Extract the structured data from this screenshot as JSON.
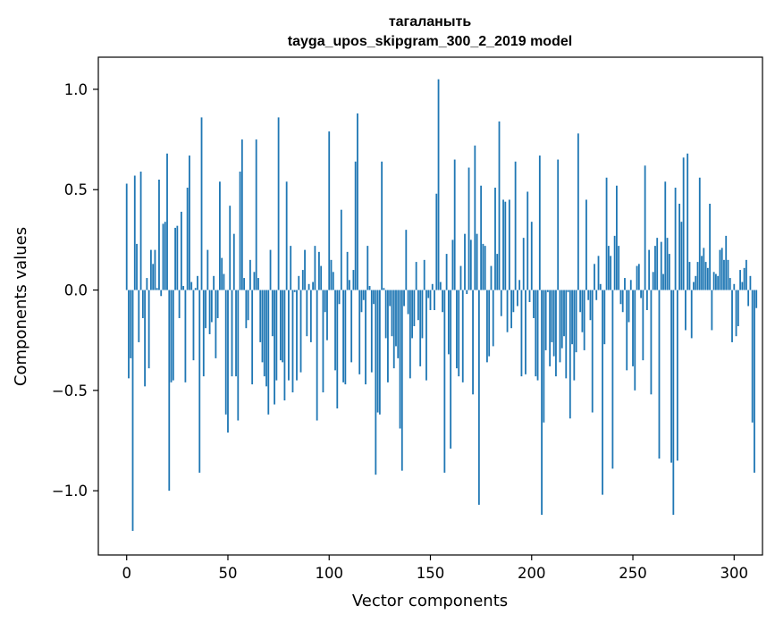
{
  "chart_data": {
    "type": "bar",
    "title_line1": "тагаланыть",
    "title_line2": "tayga_upos_skipgram_300_2_2019 model",
    "xlabel": "Vector components",
    "ylabel": "Components values",
    "xlim": [
      -14,
      314
    ],
    "ylim": [
      -1.32,
      1.16
    ],
    "x_ticks": [
      0,
      50,
      100,
      150,
      200,
      250,
      300
    ],
    "x_tick_labels": [
      "0",
      "50",
      "100",
      "150",
      "200",
      "250",
      "300"
    ],
    "y_ticks": [
      -1.0,
      -0.5,
      0.0,
      0.5,
      1.0
    ],
    "y_tick_labels": [
      "−1.0",
      "−0.5",
      "0.0",
      "0.5",
      "1.0"
    ],
    "bar_color": "#1f77b4",
    "values": [
      0.53,
      -0.44,
      -0.34,
      -1.2,
      0.57,
      0.23,
      -0.26,
      0.59,
      -0.14,
      -0.48,
      0.06,
      -0.39,
      0.2,
      0.13,
      0.2,
      0.01,
      0.55,
      -0.03,
      0.33,
      0.34,
      0.68,
      -1.0,
      -0.46,
      -0.45,
      0.31,
      0.32,
      -0.14,
      0.39,
      0.02,
      -0.46,
      0.51,
      0.67,
      0.04,
      -0.35,
      0.01,
      0.07,
      -0.91,
      0.86,
      -0.43,
      -0.19,
      0.2,
      -0.22,
      -0.16,
      0.07,
      -0.34,
      -0.14,
      0.54,
      0.16,
      0.08,
      -0.62,
      -0.71,
      0.42,
      -0.43,
      0.28,
      -0.43,
      -0.65,
      0.59,
      0.75,
      0.06,
      -0.19,
      -0.15,
      0.15,
      -0.47,
      0.09,
      0.75,
      0.06,
      -0.26,
      -0.36,
      -0.43,
      -0.48,
      -0.62,
      0.2,
      -0.23,
      -0.57,
      -0.45,
      0.86,
      -0.35,
      -0.36,
      -0.55,
      0.54,
      -0.45,
      0.22,
      -0.51,
      -0.01,
      -0.45,
      0.07,
      -0.41,
      0.1,
      0.2,
      -0.23,
      0.03,
      -0.26,
      0.04,
      0.22,
      -0.65,
      0.19,
      0.12,
      -0.51,
      -0.11,
      -0.25,
      0.79,
      0.15,
      0.09,
      -0.4,
      -0.59,
      -0.07,
      0.4,
      -0.46,
      -0.47,
      0.19,
      0.05,
      -0.36,
      0.1,
      0.64,
      0.88,
      -0.42,
      -0.11,
      -0.05,
      -0.47,
      0.22,
      0.02,
      -0.41,
      -0.07,
      -0.92,
      -0.61,
      -0.62,
      0.64,
      0.01,
      -0.24,
      -0.46,
      -0.08,
      -0.23,
      -0.39,
      -0.28,
      -0.34,
      -0.69,
      -0.9,
      -0.08,
      0.3,
      -0.12,
      -0.44,
      -0.24,
      -0.18,
      0.14,
      -0.15,
      -0.38,
      -0.24,
      0.15,
      -0.45,
      -0.04,
      -0.1,
      0.03,
      -0.1,
      0.48,
      1.05,
      0.04,
      -0.11,
      -0.91,
      0.18,
      -0.32,
      -0.79,
      0.25,
      0.65,
      -0.39,
      -0.43,
      0.12,
      -0.46,
      0.28,
      -0.02,
      0.61,
      0.25,
      -0.52,
      0.72,
      0.28,
      -1.07,
      0.52,
      0.23,
      0.22,
      -0.36,
      -0.33,
      0.12,
      -0.28,
      0.51,
      0.18,
      0.84,
      -0.13,
      0.45,
      0.44,
      -0.21,
      0.45,
      -0.19,
      -0.11,
      0.64,
      -0.08,
      0.05,
      -0.43,
      0.26,
      -0.42,
      0.49,
      -0.06,
      0.34,
      -0.14,
      -0.43,
      -0.45,
      0.67,
      -1.12,
      -0.66,
      -0.3,
      -0.01,
      -0.38,
      -0.26,
      -0.33,
      -0.43,
      0.65,
      -0.36,
      -0.29,
      -0.23,
      -0.44,
      -0.01,
      -0.64,
      -0.27,
      -0.45,
      -0.31,
      0.78,
      -0.11,
      -0.21,
      -0.3,
      0.45,
      -0.05,
      -0.15,
      -0.61,
      0.13,
      -0.05,
      0.17,
      0.03,
      -1.02,
      -0.27,
      0.56,
      0.22,
      0.17,
      -0.89,
      0.27,
      0.52,
      0.22,
      -0.07,
      -0.11,
      0.06,
      -0.4,
      -0.16,
      0.05,
      -0.38,
      -0.5,
      0.12,
      0.13,
      -0.04,
      -0.35,
      0.62,
      -0.1,
      0.2,
      -0.52,
      0.09,
      0.22,
      0.26,
      -0.84,
      0.24,
      0.08,
      0.54,
      0.26,
      0.18,
      -0.86,
      -1.12,
      0.51,
      -0.85,
      0.43,
      0.34,
      0.66,
      -0.2,
      0.68,
      0.14,
      -0.24,
      0.04,
      0.07,
      0.14,
      0.56,
      0.17,
      0.21,
      0.14,
      0.11,
      0.43,
      -0.2,
      0.09,
      0.08,
      0.07,
      0.2,
      0.21,
      0.15,
      0.27,
      0.15,
      0.06,
      -0.26,
      0.03,
      -0.23,
      -0.18,
      0.1,
      0.04,
      0.11,
      0.15,
      -0.08,
      0.07,
      -0.66,
      -0.91,
      -0.09
    ]
  }
}
